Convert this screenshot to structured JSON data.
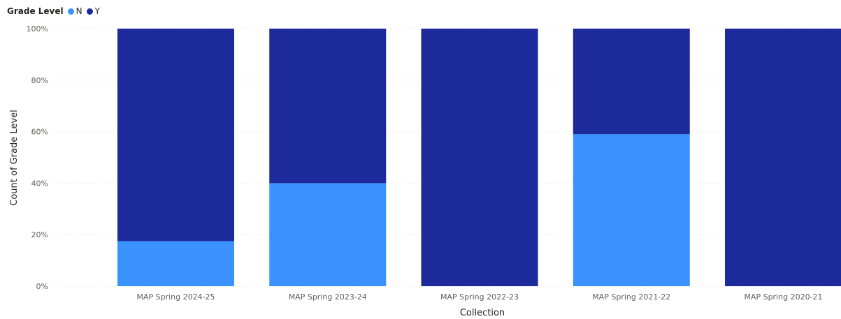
{
  "legend": {
    "title": "Grade Level",
    "items": [
      {
        "label": "N",
        "color": "#3a92ff"
      },
      {
        "label": "Y",
        "color": "#1c2a9c"
      }
    ]
  },
  "chart_data": {
    "type": "bar",
    "stacked": true,
    "normalized": true,
    "title": "",
    "xlabel": "Collection",
    "ylabel": "Count of Grade Level",
    "categories": [
      "MAP Spring 2024-25",
      "MAP Spring 2023-24",
      "MAP Spring 2022-23",
      "MAP Spring 2021-22",
      "MAP Spring 2020-21"
    ],
    "series": [
      {
        "name": "N",
        "color": "#3a92ff",
        "values": [
          17.5,
          40,
          0,
          59,
          0
        ]
      },
      {
        "name": "Y",
        "color": "#1c2a9c",
        "values": [
          82.5,
          60,
          100,
          41,
          100
        ]
      }
    ],
    "ylim": [
      0,
      100
    ],
    "yticks": [
      "0%",
      "20%",
      "40%",
      "60%",
      "80%",
      "100%"
    ],
    "grid": true,
    "legend_position": "top-left"
  }
}
